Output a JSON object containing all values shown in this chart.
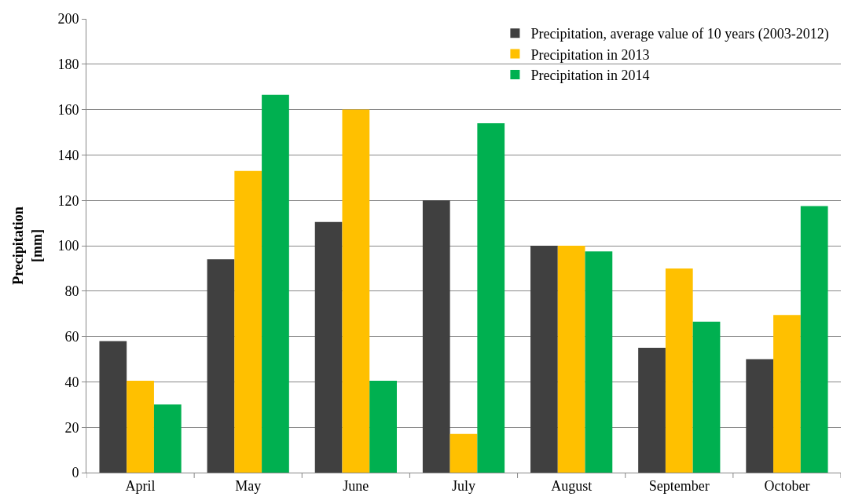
{
  "chart_data": {
    "type": "bar",
    "ylabel": "Precipitation [mm]",
    "categories": [
      "April",
      "May",
      "June",
      "July",
      "August",
      "September",
      "October"
    ],
    "series": [
      {
        "name": "Precipitation, average value of 10 years (2003-2012)",
        "color": "#404040",
        "values": [
          58,
          94,
          110.5,
          120,
          100,
          55,
          50
        ]
      },
      {
        "name": "Precipitation in 2013",
        "color": "#ffc000",
        "values": [
          40.5,
          133,
          160,
          17,
          100,
          90,
          69.5
        ]
      },
      {
        "name": "Precipitation in 2014",
        "color": "#00b050",
        "values": [
          30,
          166.5,
          40.5,
          154,
          97.5,
          66.5,
          117.5
        ]
      }
    ],
    "ylim": [
      0,
      200
    ],
    "yticks": [
      0,
      20,
      40,
      60,
      80,
      100,
      120,
      140,
      160,
      180,
      200
    ],
    "grid": "y",
    "legend": "top right"
  }
}
